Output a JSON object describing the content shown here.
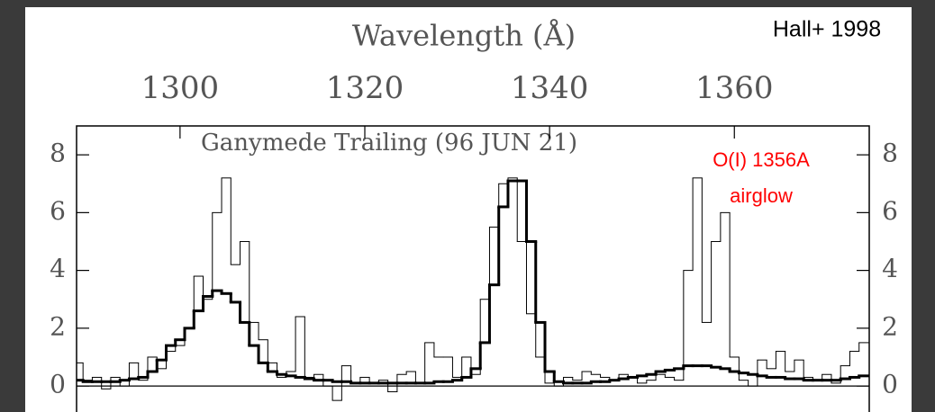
{
  "chart_data": {
    "type": "step",
    "title": "Ganymede Trailing (96 JUN 21)",
    "xlabel": "Wavelength (Å)",
    "source": "Hall+ 1998",
    "annotations": [
      "O(I) 1356A",
      "airglow"
    ],
    "annotation_color": "#ff0000",
    "xlim": [
      1288.8,
      1374.6
    ],
    "ylim": [
      -0.9,
      9.0
    ],
    "xticks": [
      1300,
      1320,
      1340,
      1360
    ],
    "yticks": [
      0,
      2,
      4,
      6,
      8
    ],
    "x": [
      1289,
      1290,
      1291,
      1292,
      1293,
      1294,
      1295,
      1296,
      1297,
      1298,
      1299,
      1300,
      1301,
      1302,
      1303,
      1304,
      1305,
      1306,
      1307,
      1308,
      1309,
      1310,
      1311,
      1312,
      1313,
      1314,
      1315,
      1316,
      1317,
      1318,
      1319,
      1320,
      1321,
      1322,
      1323,
      1324,
      1325,
      1326,
      1327,
      1328,
      1329,
      1330,
      1331,
      1332,
      1333,
      1334,
      1335,
      1336,
      1337,
      1338,
      1339,
      1340,
      1341,
      1342,
      1343,
      1344,
      1345,
      1346,
      1347,
      1348,
      1349,
      1350,
      1351,
      1352,
      1353,
      1354,
      1355,
      1356,
      1357,
      1358,
      1359,
      1360,
      1361,
      1362,
      1363,
      1364,
      1365,
      1366,
      1367,
      1368,
      1369,
      1370,
      1371,
      1372,
      1373,
      1374
    ],
    "series": [
      {
        "color": "#000000",
        "width": 1,
        "values": [
          0.8,
          0.2,
          0.3,
          -0.1,
          0.3,
          0.0,
          0.8,
          0.2,
          1.0,
          0.6,
          1.2,
          1.4,
          2.0,
          3.8,
          3.0,
          6.0,
          7.2,
          4.2,
          5.0,
          2.2,
          1.6,
          0.8,
          0.3,
          0.5,
          2.4,
          0.3,
          0.4,
          0.0,
          -0.5,
          0.7,
          0.1,
          0.3,
          0.1,
          0.2,
          -0.2,
          0.4,
          0.5,
          0.1,
          1.5,
          1.0,
          1.0,
          0.3,
          1.0,
          0.4,
          3.0,
          5.5,
          7.0,
          7.2,
          5.0,
          2.5,
          1.0,
          0.1,
          0.0,
          0.3,
          0.2,
          0.5,
          0.4,
          0.3,
          0.2,
          0.4,
          0.3,
          0.1,
          0.2,
          0.4,
          0.3,
          0.2,
          4.0,
          7.2,
          2.2,
          5.0,
          6.0,
          1.0,
          0.2,
          0.0,
          0.9,
          0.6,
          1.2,
          0.5,
          0.9,
          0.3,
          0.2,
          0.4,
          0.1,
          0.7,
          1.2,
          1.5
        ]
      },
      {
        "color": "#000000",
        "width": 3,
        "values": [
          0.2,
          0.15,
          0.15,
          0.15,
          0.15,
          0.2,
          0.25,
          0.3,
          0.5,
          0.9,
          1.4,
          1.6,
          2.0,
          2.6,
          3.1,
          3.3,
          3.2,
          2.9,
          2.2,
          1.4,
          0.8,
          0.5,
          0.4,
          0.35,
          0.3,
          0.25,
          0.2,
          0.2,
          0.15,
          0.15,
          0.1,
          0.1,
          0.1,
          0.1,
          0.1,
          0.1,
          0.1,
          0.1,
          0.1,
          0.15,
          0.15,
          0.2,
          0.3,
          0.6,
          1.5,
          3.5,
          6.2,
          7.1,
          7.1,
          5.0,
          2.2,
          0.5,
          0.15,
          0.1,
          0.1,
          0.1,
          0.15,
          0.15,
          0.2,
          0.25,
          0.3,
          0.35,
          0.4,
          0.5,
          0.55,
          0.6,
          0.7,
          0.7,
          0.7,
          0.65,
          0.6,
          0.5,
          0.45,
          0.4,
          0.35,
          0.3,
          0.3,
          0.25,
          0.25,
          0.2,
          0.2,
          0.2,
          0.2,
          0.25,
          0.3,
          0.35
        ]
      }
    ]
  }
}
